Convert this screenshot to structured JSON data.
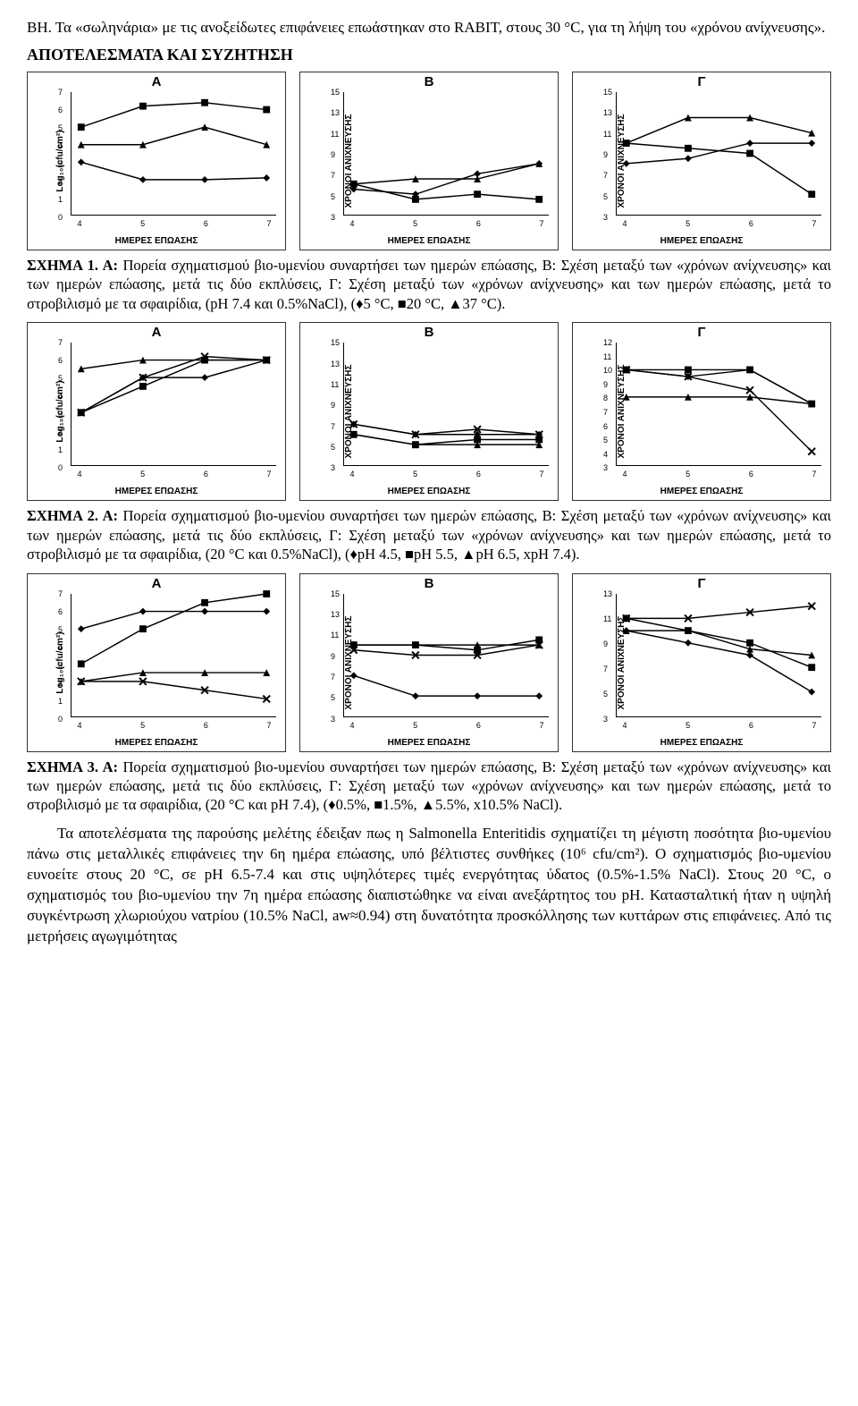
{
  "intro_p1": "ΒΗ. Τα «σωληνάρια» με τις ανοξείδωτες επιφάνειες  επωάστηκαν στο RABIT, στους 30 °C, για τη λήψη του «χρόνου ανίχνευσης».",
  "section_heading": "ΑΠΟΤΕΛΕΣΜΑΤΑ ΚΑΙ ΣΥΖΗΤΗΣΗ",
  "common": {
    "xlabel": "ΗΜΕΡΕΣ ΕΠΩΑΣΗΣ",
    "ylabel_log": "Log₁₀(cfu/cm²)",
    "ylabel_xr": "ΧΡΟΝΟΙ ΑΝΙΧΝΕΥΣΗΣ",
    "x_ticks": [
      4,
      5,
      6,
      7
    ],
    "line_color": "#000000",
    "marker_size": 7,
    "bg": "#ffffff"
  },
  "fig1": {
    "panels": {
      "A": {
        "label": "Α",
        "ylabel": "Log₁₀(cfu/cm²)",
        "ylim": [
          0,
          7
        ],
        "yticks": [
          0,
          1,
          2,
          3,
          4,
          5,
          6,
          7
        ],
        "series": [
          {
            "marker": "diamond",
            "y": [
              3,
              2,
              2,
              2.1
            ]
          },
          {
            "marker": "square",
            "y": [
              5,
              6.2,
              6.4,
              6
            ]
          },
          {
            "marker": "triangle",
            "y": [
              4,
              4,
              5,
              4
            ]
          }
        ]
      },
      "B": {
        "label": "Β",
        "ylabel": "ΧΡΟΝΟΙ ΑΝΙΧΝΕΥΣΗΣ",
        "ylim": [
          3,
          15
        ],
        "yticks": [
          3,
          5,
          7,
          9,
          11,
          13,
          15
        ],
        "series": [
          {
            "marker": "diamond",
            "y": [
              5.5,
              5,
              7,
              8
            ]
          },
          {
            "marker": "square",
            "y": [
              6,
              4.5,
              5,
              4.5
            ]
          },
          {
            "marker": "triangle",
            "y": [
              6,
              6.5,
              6.5,
              8
            ]
          }
        ]
      },
      "C": {
        "label": "Γ",
        "ylabel": "ΧΡΟΝΟΙ ΑΝΙΧΝΕΥΣΗΣ",
        "ylim": [
          3,
          15
        ],
        "yticks": [
          3,
          5,
          7,
          9,
          11,
          13,
          15
        ],
        "series": [
          {
            "marker": "diamond",
            "y": [
              8,
              8.5,
              10,
              10
            ]
          },
          {
            "marker": "square",
            "y": [
              10,
              9.5,
              9,
              5
            ]
          },
          {
            "marker": "triangle",
            "y": [
              10,
              12.5,
              12.5,
              11
            ]
          }
        ]
      }
    },
    "caption_lead": "ΣΧΗΜΑ 1. Α:",
    "caption": " Πορεία σχηματισμού βιο-υμενίου συναρτήσει των ημερών επώασης, B: Σχέση μεταξύ των «χρόνων ανίχνευσης» και των ημερών επώασης, μετά τις δύο εκπλύσεις, Γ: Σχέση μεταξύ των «χρόνων ανίχνευσης» και των ημερών επώασης, μετά το στροβιλισμό με τα σφαιρίδια, (pH 7.4 και 0.5%NaCl), (♦5 °C, ■20 °C, ▲37 °C)."
  },
  "fig2": {
    "panels": {
      "A": {
        "label": "Α",
        "ylabel": "Log₁₀(cfu/cm²)",
        "ylim": [
          0,
          7
        ],
        "yticks": [
          0,
          1,
          2,
          3,
          4,
          5,
          6,
          7
        ],
        "series": [
          {
            "marker": "diamond",
            "y": [
              3,
              5,
              5,
              6
            ]
          },
          {
            "marker": "square",
            "y": [
              3,
              4.5,
              6,
              6
            ]
          },
          {
            "marker": "triangle",
            "y": [
              5.5,
              6,
              6,
              6
            ]
          },
          {
            "marker": "x",
            "y": [
              3,
              5,
              6.2,
              6
            ]
          }
        ]
      },
      "B": {
        "label": "Β",
        "ylabel": "ΧΡΟΝΟΙ ΑΝΙΧΝΕΥΣΗΣ",
        "ylim": [
          3,
          15
        ],
        "yticks": [
          3,
          5,
          7,
          9,
          11,
          13,
          15
        ],
        "series": [
          {
            "marker": "diamond",
            "y": [
              7,
              6,
              6,
              6
            ]
          },
          {
            "marker": "square",
            "y": [
              6,
              5,
              5.5,
              5.5
            ]
          },
          {
            "marker": "triangle",
            "y": [
              6,
              5,
              5,
              5
            ]
          },
          {
            "marker": "x",
            "y": [
              7,
              6,
              6.5,
              6
            ]
          }
        ]
      },
      "C": {
        "label": "Γ",
        "ylabel": "ΧΡΟΝΟΙ ΑΝΙΧΝΕΥΣΗΣ",
        "ylim": [
          3,
          12
        ],
        "yticks": [
          3,
          4,
          5,
          6,
          7,
          8,
          9,
          10,
          11,
          12
        ],
        "series": [
          {
            "marker": "diamond",
            "y": [
              10,
              9.5,
              10,
              7.5
            ]
          },
          {
            "marker": "square",
            "y": [
              10,
              10,
              10,
              7.5
            ]
          },
          {
            "marker": "triangle",
            "y": [
              8,
              8,
              8,
              7.5
            ]
          },
          {
            "marker": "x",
            "y": [
              10,
              9.5,
              8.5,
              4
            ]
          }
        ]
      }
    },
    "caption_lead": "ΣΧΗΜΑ 2. Α:",
    "caption": " Πορεία σχηματισμού βιο-υμενίου συναρτήσει των ημερών επώασης, B: Σχέση μεταξύ των «χρόνων ανίχνευσης» και των ημερών επώασης, μετά τις δύο εκπλύσεις, Γ: Σχέση μεταξύ των «χρόνων ανίχνευσης» και των ημερών επώασης, μετά το στροβιλισμό με τα σφαιρίδια, (20 °C και 0.5%NaCl), (♦pH 4.5, ■pH 5.5, ▲pH 6.5, xpH 7.4)."
  },
  "fig3": {
    "panels": {
      "A": {
        "label": "Α",
        "ylabel": "Log₁₀(cfu/cm²)",
        "ylim": [
          0,
          7
        ],
        "yticks": [
          0,
          1,
          2,
          3,
          4,
          5,
          6,
          7
        ],
        "series": [
          {
            "marker": "diamond",
            "y": [
              5,
              6,
              6,
              6
            ]
          },
          {
            "marker": "square",
            "y": [
              3,
              5,
              6.5,
              7
            ]
          },
          {
            "marker": "triangle",
            "y": [
              2,
              2.5,
              2.5,
              2.5
            ]
          },
          {
            "marker": "x",
            "y": [
              2,
              2,
              1.5,
              1
            ]
          }
        ]
      },
      "B": {
        "label": "Β",
        "ylabel": "ΧΡΟΝΟΙ ΑΝΙΧΝΕΥΣΗΣ",
        "ylim": [
          3,
          15
        ],
        "yticks": [
          3,
          5,
          7,
          9,
          11,
          13,
          15
        ],
        "series": [
          {
            "marker": "diamond",
            "y": [
              7,
              5,
              5,
              5
            ]
          },
          {
            "marker": "square",
            "y": [
              10,
              10,
              9.5,
              10.5
            ]
          },
          {
            "marker": "triangle",
            "y": [
              10,
              10,
              10,
              10
            ]
          },
          {
            "marker": "x",
            "y": [
              9.5,
              9,
              9,
              10
            ]
          }
        ]
      },
      "C": {
        "label": "Γ",
        "ylabel": "ΧΡΟΝΟΙ ΑΝΙΧΝΕΥΣΗΣ",
        "ylim": [
          3,
          13
        ],
        "yticks": [
          3,
          5,
          7,
          9,
          11,
          13
        ],
        "series": [
          {
            "marker": "diamond",
            "y": [
              10,
              9,
              8,
              5
            ]
          },
          {
            "marker": "square",
            "y": [
              11,
              10,
              9,
              7
            ]
          },
          {
            "marker": "triangle",
            "y": [
              10,
              10,
              8.5,
              8
            ]
          },
          {
            "marker": "x",
            "y": [
              11,
              11,
              11.5,
              12
            ]
          }
        ]
      }
    },
    "caption_lead": "ΣΧΗΜΑ 3. Α:",
    "caption": " Πορεία σχηματισμού βιο-υμενίου συναρτήσει των ημερών επώασης, B: Σχέση μεταξύ των «χρόνων ανίχνευσης» και των ημερών επώασης, μετά τις δύο εκπλύσεις, Γ: Σχέση μεταξύ των «χρόνων ανίχνευσης» και των ημερών επώασης, μετά το στροβιλισμό με τα σφαιρίδια, (20 °C και pH 7.4), (♦0.5%, ■1.5%, ▲5.5%, x10.5% NaCl)."
  },
  "discussion": "Τα αποτελέσματα της παρούσης μελέτης έδειξαν πως η Salmonella Enteritidis σχηματίζει τη μέγιστη ποσότητα βιο-υμενίου πάνω στις μεταλλικές επιφάνειες την 6η ημέρα επώασης, υπό βέλτιστες συνθήκες (10⁶ cfu/cm²). Ο σχηματισμός βιο-υμενίου ευνοείτε στους 20 °C, σε pH 6.5-7.4 και στις υψηλότερες τιμές ενεργότητας ύδατος (0.5%-1.5% NaCl). Στους 20 °C, ο σχηματισμός του βιο-υμενίου την 7η ημέρα επώασης διαπιστώθηκε να είναι  ανεξάρτητος του pH. Κατασταλτική ήταν η υψηλή συγκέντρωση χλωριούχου νατρίου (10.5% NaCl, aw≈0.94) στη δυνατότητα προσκόλλησης των κυττάρων στις επιφάνειες. Από τις μετρήσεις αγωγιμότητας"
}
